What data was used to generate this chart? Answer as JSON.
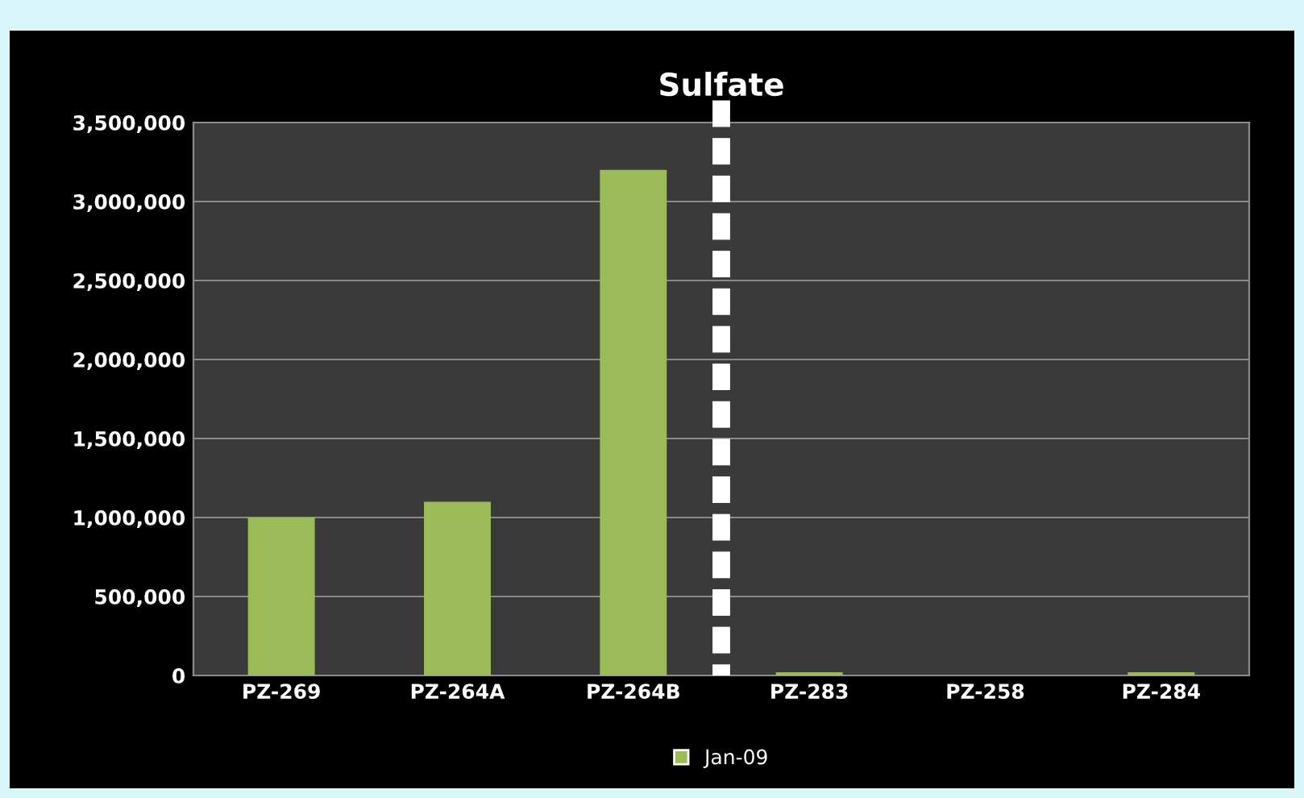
{
  "chart_data": {
    "type": "bar",
    "title": "Sulfate",
    "categories": [
      "PZ-269",
      "PZ-264A",
      "PZ-264B",
      "PZ-283",
      "PZ-258",
      "PZ-284"
    ],
    "series": [
      {
        "name": "Jan-09",
        "color": "#9bbb59",
        "values": [
          1000000,
          1100000,
          3200000,
          20000,
          0,
          20000
        ]
      }
    ],
    "ylim": [
      0,
      3500000
    ],
    "yticks": [
      {
        "value": 0,
        "label": "0"
      },
      {
        "value": 500000,
        "label": "500,000"
      },
      {
        "value": 1000000,
        "label": "1,000,000"
      },
      {
        "value": 1500000,
        "label": "1,500,000"
      },
      {
        "value": 2000000,
        "label": "2,000,000"
      },
      {
        "value": 2500000,
        "label": "2,500,000"
      },
      {
        "value": 3000000,
        "label": "3,000,000"
      },
      {
        "value": 3500000,
        "label": "3,500,000"
      }
    ],
    "grid": "y",
    "legend": "bottom"
  }
}
